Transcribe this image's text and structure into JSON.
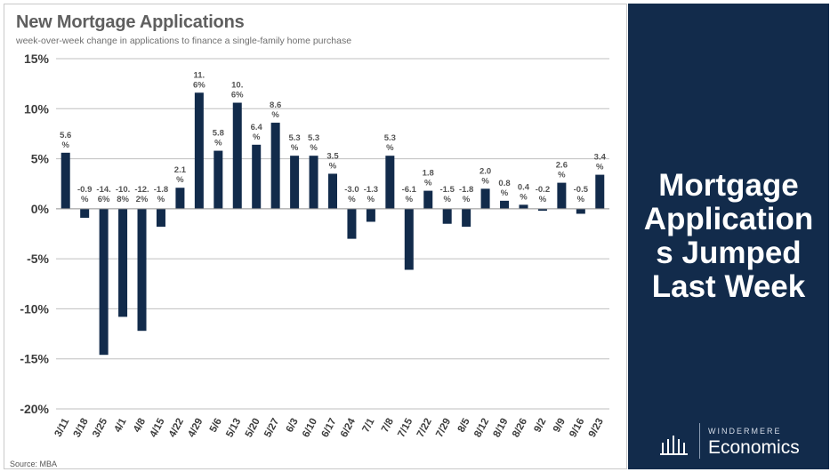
{
  "title": "New Mortgage Applications",
  "subtitle": "week-over-week change in applications to finance a single-family home purchase",
  "source": "Source: MBA",
  "headline": [
    "Mortgage",
    "Application",
    "s Jumped",
    "Last Week"
  ],
  "brand": {
    "top": "WINDERMERE",
    "name": "Economics"
  },
  "colors": {
    "bar": "#122b4b",
    "panel": "#122b4b",
    "grid": "#bfbfbf"
  },
  "chart_data": {
    "type": "bar",
    "title": "New Mortgage Applications",
    "subtitle": "week-over-week change in applications to finance a single-family home purchase",
    "categories": [
      "3/11",
      "3/18",
      "3/25",
      "4/1",
      "4/8",
      "4/15",
      "4/22",
      "4/29",
      "5/6",
      "5/13",
      "5/20",
      "5/27",
      "6/3",
      "6/10",
      "6/17",
      "6/24",
      "7/1",
      "7/8",
      "7/15",
      "7/22",
      "7/29",
      "8/5",
      "8/12",
      "8/19",
      "8/26",
      "9/2",
      "9/9",
      "9/16",
      "9/23"
    ],
    "values": [
      5.6,
      -0.9,
      -14.6,
      -10.8,
      -12.2,
      -1.8,
      2.1,
      11.6,
      5.8,
      10.6,
      6.4,
      8.6,
      5.3,
      5.3,
      3.5,
      -3.0,
      -1.3,
      5.3,
      -6.1,
      1.8,
      -1.5,
      -1.8,
      2.0,
      0.8,
      0.4,
      -0.2,
      2.6,
      -0.5,
      3.4
    ],
    "data_labels": [
      [
        "5.6",
        "%"
      ],
      [
        "-0.9",
        "%"
      ],
      [
        "-14.",
        "6%"
      ],
      [
        "-10.",
        "8%"
      ],
      [
        "-12.",
        "2%"
      ],
      [
        "-1.8",
        "%"
      ],
      [
        "2.1",
        "%"
      ],
      [
        "11.",
        "6%"
      ],
      [
        "5.8",
        "%"
      ],
      [
        "10.",
        "6%"
      ],
      [
        "6.4",
        "%"
      ],
      [
        "8.6",
        "%"
      ],
      [
        "5.3",
        "%"
      ],
      [
        "5.3",
        "%"
      ],
      [
        "3.5",
        "%"
      ],
      [
        "-3.0",
        "%"
      ],
      [
        "-1.3",
        "%"
      ],
      [
        "5.3",
        "%"
      ],
      [
        "-6.1",
        "%"
      ],
      [
        "1.8",
        "%"
      ],
      [
        "-1.5",
        "%"
      ],
      [
        "-1.8",
        "%"
      ],
      [
        "2.0",
        "%"
      ],
      [
        "0.8",
        "%"
      ],
      [
        "0.4",
        "%"
      ],
      [
        "-0.2",
        "%"
      ],
      [
        "2.6",
        "%"
      ],
      [
        "-0.5",
        "%"
      ],
      [
        "3.4",
        "%"
      ]
    ],
    "yticks": [
      "15%",
      "10%",
      "5%",
      "0%",
      "-5%",
      "-10%",
      "-15%",
      "-20%"
    ],
    "ytick_values": [
      15,
      10,
      5,
      0,
      -5,
      -10,
      -15,
      -20
    ],
    "ylim": [
      -20,
      15
    ],
    "grid": true,
    "legend": "none"
  }
}
